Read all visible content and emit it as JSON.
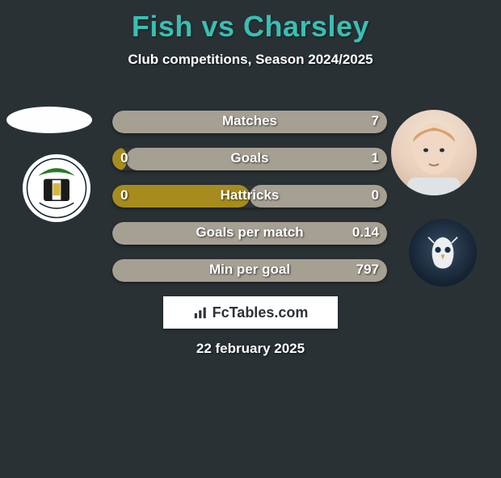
{
  "title": "Fish vs Charsley",
  "subtitle": "Club competitions, Season 2024/2025",
  "date": "22 february 2025",
  "brand": "FcTables.com",
  "colors": {
    "left_bar": "#a68c1d",
    "right_bar": "#a6a093",
    "accent": "#38bfb2",
    "bg": "#293135"
  },
  "bars_width": 340,
  "rows": [
    {
      "label": "Matches",
      "left": "",
      "right": "7",
      "left_pct": 0,
      "right_pct": 100
    },
    {
      "label": "Goals",
      "left": "0",
      "right": "1",
      "left_pct": 5,
      "right_pct": 95
    },
    {
      "label": "Hattricks",
      "left": "0",
      "right": "0",
      "left_pct": 50,
      "right_pct": 50
    },
    {
      "label": "Goals per match",
      "left": "",
      "right": "0.14",
      "left_pct": 0,
      "right_pct": 100
    },
    {
      "label": "Min per goal",
      "left": "",
      "right": "797",
      "left_pct": 0,
      "right_pct": 100
    }
  ]
}
